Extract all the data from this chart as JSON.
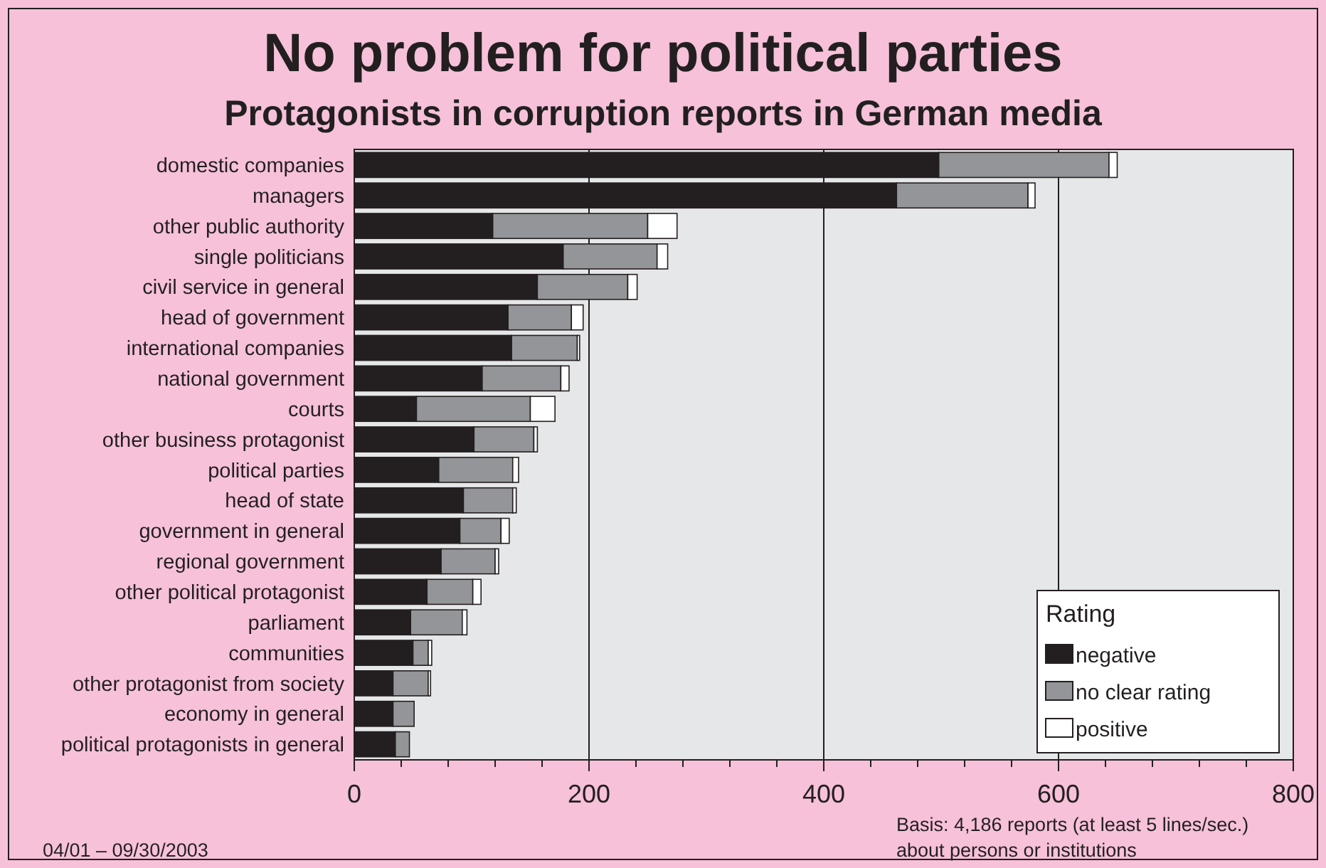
{
  "chart_data": {
    "type": "bar",
    "orientation": "horizontal",
    "stacked": true,
    "title": "No problem for political parties",
    "subtitle": "Protagonists in corruption reports in German media",
    "categories": [
      "domestic companies",
      "managers",
      "other public authority",
      "single politicians",
      "civil service in general",
      "head of government",
      "international companies",
      "national government",
      "courts",
      "other business protagonist",
      "political parties",
      "head of state",
      "government in general",
      "regional government",
      "other political protagonist",
      "parliament",
      "communities",
      "other protagonist from society",
      "economy in general",
      "political protagonists in general"
    ],
    "series": [
      {
        "name": "negative",
        "color": "#231f20",
        "values": [
          498,
          462,
          118,
          178,
          156,
          131,
          134,
          109,
          53,
          102,
          72,
          93,
          90,
          74,
          62,
          48,
          50,
          33,
          33,
          35
        ]
      },
      {
        "name": "no clear rating",
        "color": "#939598",
        "values": [
          145,
          112,
          132,
          80,
          77,
          54,
          56,
          67,
          97,
          51,
          63,
          42,
          35,
          46,
          39,
          44,
          13,
          30,
          18,
          12
        ]
      },
      {
        "name": "positive",
        "color": "#ffffff",
        "values": [
          7,
          6,
          25,
          9,
          8,
          10,
          2,
          7,
          21,
          3,
          5,
          3,
          7,
          3,
          7,
          4,
          3,
          2,
          null,
          null
        ]
      }
    ],
    "xlim": [
      0,
      800
    ],
    "xticks": [
      0,
      {
        "value": 40,
        "label": null
      },
      {
        "value": 80,
        "label": null
      },
      {
        "value": 120,
        "label": null
      },
      {
        "value": 160,
        "label": null
      },
      200,
      {
        "value": 240,
        "label": null
      },
      {
        "value": 280,
        "label": null
      },
      {
        "value": 320,
        "label": null
      },
      {
        "value": 360,
        "label": null
      },
      400,
      {
        "value": 440,
        "label": null
      },
      {
        "value": 480,
        "label": null
      },
      {
        "value": 520,
        "label": null
      },
      {
        "value": 560,
        "label": null
      },
      600,
      {
        "value": 640,
        "label": null
      },
      {
        "value": 680,
        "label": null
      },
      {
        "value": 720,
        "label": null
      },
      {
        "value": 760,
        "label": null
      },
      800
    ],
    "grid": "x",
    "legend": "bottom right",
    "legend_title": "Rating",
    "annotations": [
      "04/01 – 09/30/2003",
      "Basis: 4,186 reports (at least 5 lines/sec.)",
      "about persons or institutions"
    ]
  }
}
